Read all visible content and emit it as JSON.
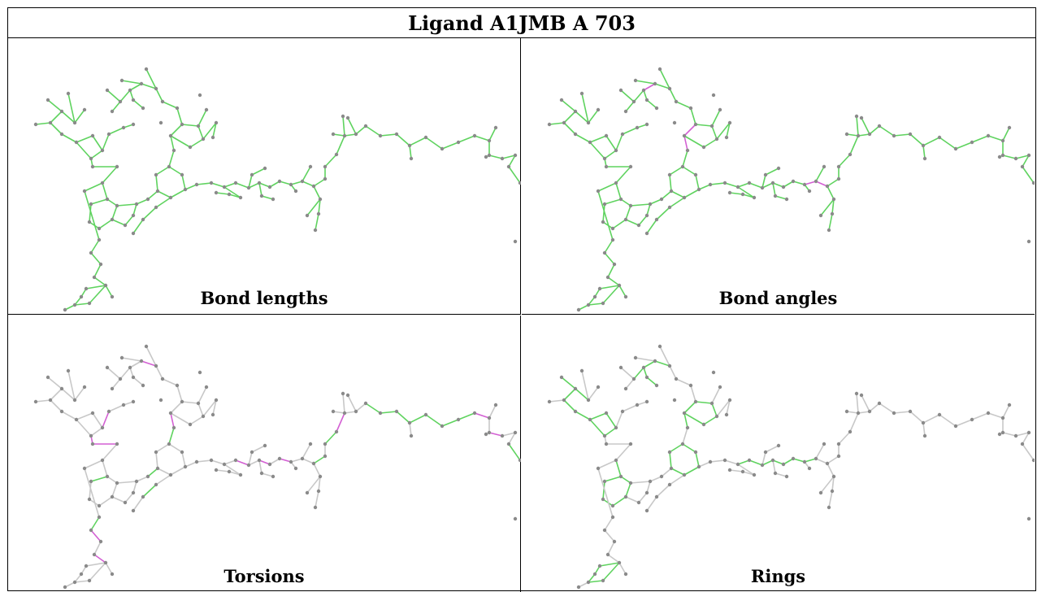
{
  "title": "Ligand A1JMB A 703",
  "panels": [
    {
      "caption": "Bond lengths",
      "mode": "all-green"
    },
    {
      "caption": "Bond angles",
      "mode": "angles"
    },
    {
      "caption": "Torsions",
      "mode": "torsions"
    },
    {
      "caption": "Rings",
      "mode": "rings"
    }
  ],
  "colors": {
    "ok": "#5fd35f",
    "outlier": "#d35fd3",
    "neutral": "#c8c8c8",
    "atom": "#8a8a8a"
  }
}
